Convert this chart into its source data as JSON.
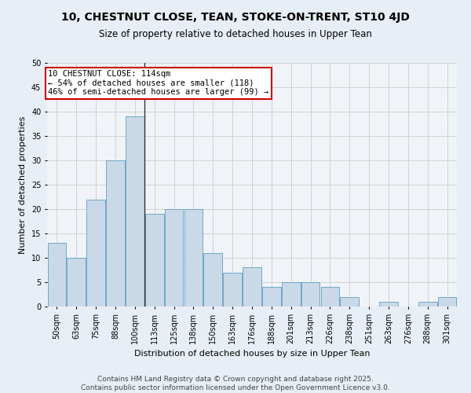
{
  "title": "10, CHESTNUT CLOSE, TEAN, STOKE-ON-TRENT, ST10 4JD",
  "subtitle": "Size of property relative to detached houses in Upper Tean",
  "xlabel": "Distribution of detached houses by size in Upper Tean",
  "ylabel": "Number of detached properties",
  "categories": [
    "50sqm",
    "63sqm",
    "75sqm",
    "88sqm",
    "100sqm",
    "113sqm",
    "125sqm",
    "138sqm",
    "150sqm",
    "163sqm",
    "176sqm",
    "188sqm",
    "201sqm",
    "213sqm",
    "226sqm",
    "238sqm",
    "251sqm",
    "263sqm",
    "276sqm",
    "288sqm",
    "301sqm"
  ],
  "values": [
    13,
    10,
    22,
    30,
    39,
    19,
    20,
    20,
    11,
    7,
    8,
    4,
    5,
    5,
    4,
    2,
    0,
    1,
    0,
    1,
    2
  ],
  "bar_color": "#c9d9e8",
  "bar_edge_color": "#6fa8c8",
  "property_line_x": 4.5,
  "property_label": "10 CHESTNUT CLOSE: 114sqm",
  "annotation_line1": "← 54% of detached houses are smaller (118)",
  "annotation_line2": "46% of semi-detached houses are larger (99) →",
  "annotation_box_color": "#ffffff",
  "annotation_box_edge": "#cc0000",
  "vline_color": "#333333",
  "ylim": [
    0,
    50
  ],
  "yticks": [
    0,
    5,
    10,
    15,
    20,
    25,
    30,
    35,
    40,
    45,
    50
  ],
  "grid_color": "#cccccc",
  "bg_color": "#e8eef5",
  "plot_bg_color": "#f0f4f8",
  "footer_line1": "Contains HM Land Registry data © Crown copyright and database right 2025.",
  "footer_line2": "Contains public sector information licensed under the Open Government Licence v3.0.",
  "title_fontsize": 10,
  "subtitle_fontsize": 8.5,
  "xlabel_fontsize": 8,
  "ylabel_fontsize": 8,
  "tick_fontsize": 7,
  "annotation_fontsize": 7.5,
  "footer_fontsize": 6.5
}
